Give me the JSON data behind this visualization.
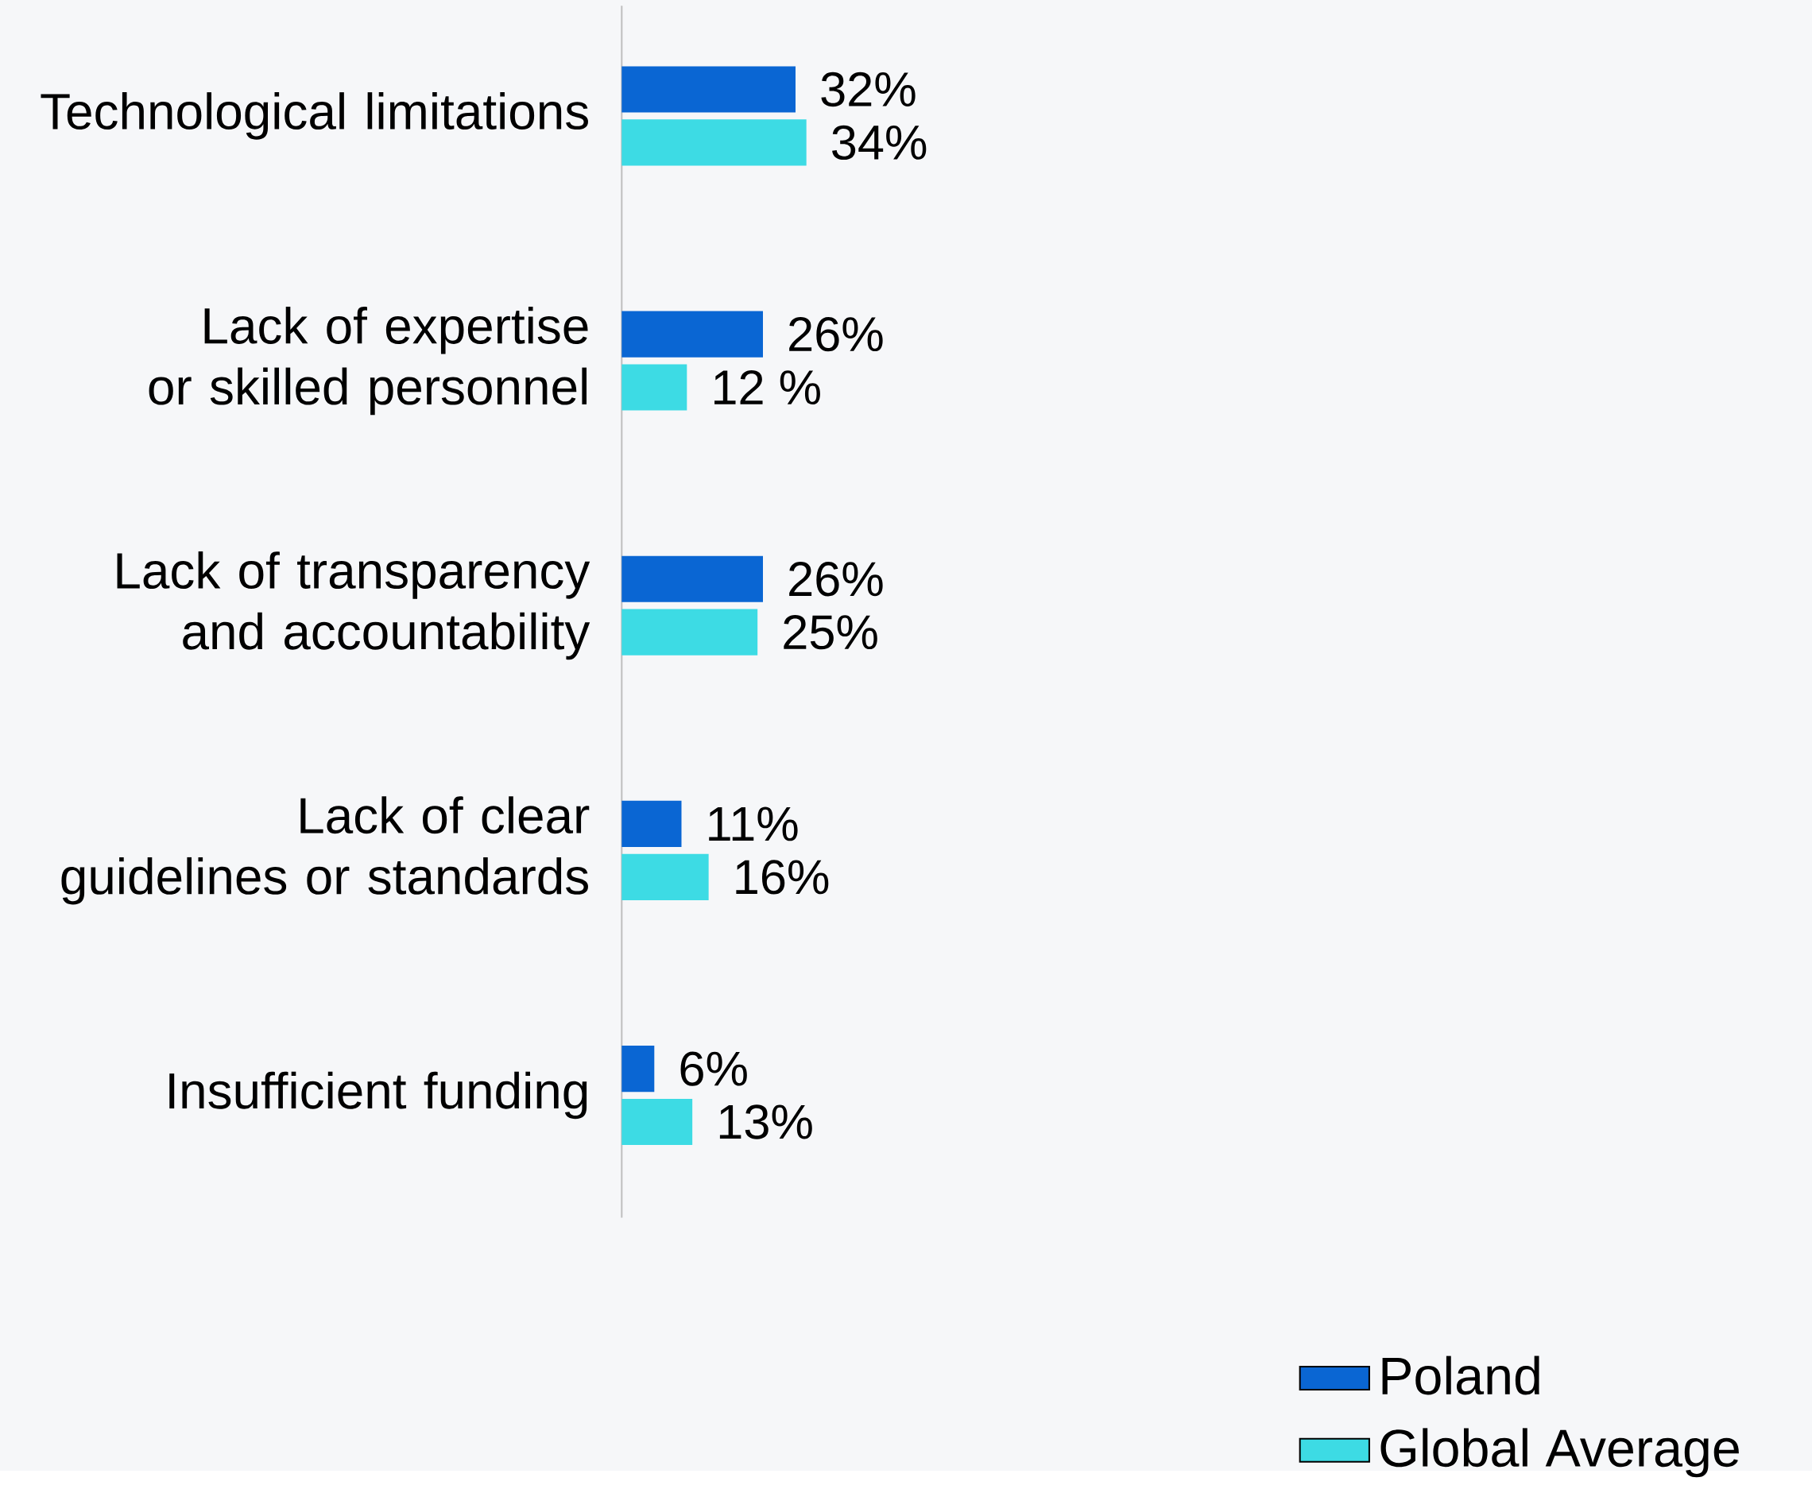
{
  "chart_data": {
    "type": "bar",
    "orientation": "horizontal",
    "legend": "bottom right",
    "categories": [
      "Technological limitations",
      "Lack of expertise or skilled personnel",
      "Lack of transparency and accountability",
      "Lack of clear guidelines or standards",
      "Insufficient funding"
    ],
    "series": [
      {
        "name": "Poland",
        "color": "#0a66d3",
        "values": [
          32,
          26,
          26,
          11,
          6
        ],
        "value_labels": [
          "32%",
          "26%",
          "26%",
          "11%",
          "6%"
        ]
      },
      {
        "name": "Global Average",
        "color": "#3ddbe4",
        "values": [
          34,
          12,
          25,
          16,
          13
        ],
        "value_labels": [
          "34%",
          "12 %",
          "25%",
          "16%",
          "13%"
        ]
      }
    ]
  }
}
